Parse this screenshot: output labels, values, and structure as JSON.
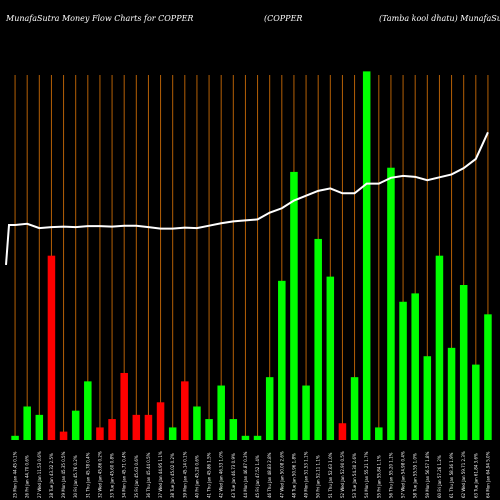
{
  "header": {
    "left": "MunafaSutra  Money Flow  Charts for COPPER",
    "middle": "(COPPER",
    "right": "(Tamba  kool dhatu) MunafaSutra.com"
  },
  "chart_data": {
    "type": "bar",
    "title": "MunafaSutra  Money Flow  Charts for COPPER",
    "categories": [
      "25 Mon Jan 44.45 0.1%",
      "26 Fri Jan 44.70 0.6%",
      "27 Wed Jan 11.53 0.6%",
      "28 Tue Jan 43.32 2.5%",
      "29 Mon Jan 45.35 0.5%",
      "30 Fri Jan 45.76 0.2%",
      "31 Thu Jan 45.78 0.4%",
      "32 Wed Jan 45.86 0.2%",
      "33 Tue Jan 45.60 0.8%",
      "34 Mon Jan 45.71 0.4%",
      "35 Fri Jan 45.63 0.6%",
      "36 Thu Jan 45.44 0.5%",
      "37 Wed Jan 44.95 1.1%",
      "38 Tue Jan 45.02 0.2%",
      "39 Mon Jan 45.14 0.1%",
      "40 Fri Jan 45.20 0.6%",
      "41 Thu Jan 45.86 1.5%",
      "42 Wed Jan 46.33 1.0%",
      "43 Tue Jan 46.73 0.9%",
      "44 Mon Jan 46.87 0.3%",
      "45 Fri Jan 47.52 1.4%",
      "46 Thu Jan 48.83 2.8%",
      "47 Wed Jan 50.08 2.6%",
      "48 Tue Jan 50.96 1.8%",
      "49 Mon Jan 51.53 1.1%",
      "50 Fri Jan 52.11 1.1%",
      "51 Thu Jan 52.63 1.0%",
      "52 Wed Jan 52.90 0.5%",
      "53 Tue Jan 54.30 2.6%",
      "54 Mon Jan 55.21 1.7%",
      "55 Fri Jan 55.84 1.1%",
      "56 Thu Jan 55.20 1.1%",
      "57 Wed Jan 54.98 0.4%",
      "58 Tue Jan 55.55 1.0%",
      "59 Mon Jan 56.57 1.8%",
      "60 Fri Jan 57.26 1.2%",
      "61 Thu Jan 58.36 1.9%",
      "62 Wed Jan 59.71 2.3%",
      "63 Tue Jan 61.84 3.6%",
      "64 Mon Jan 64.94 5.0%"
    ],
    "series": [
      {
        "values": [
          1,
          8,
          6,
          44,
          2,
          7,
          14,
          3,
          5,
          16,
          6,
          6,
          9,
          3,
          14,
          8,
          5,
          13,
          5,
          1,
          1,
          15,
          38,
          64,
          13,
          48,
          39,
          4,
          15,
          88,
          3,
          65,
          33,
          35,
          20,
          44,
          22,
          37,
          18,
          30
        ],
        "colors": [
          "#00ff00",
          "#00ff00",
          "#00ff00",
          "#ff0000",
          "#ff0000",
          "#00ff00",
          "#00ff00",
          "#ff0000",
          "#ff0000",
          "#ff0000",
          "#ff0000",
          "#ff0000",
          "#ff0000",
          "#00ff00",
          "#ff0000",
          "#00ff00",
          "#00ff00",
          "#00ff00",
          "#00ff00",
          "#00ff00",
          "#00ff00",
          "#00ff00",
          "#00ff00",
          "#00ff00",
          "#00ff00",
          "#00ff00",
          "#00ff00",
          "#ff0000",
          "#00ff00",
          "#00ff00",
          "#00ff00",
          "#00ff00",
          "#00ff00",
          "#00ff00",
          "#00ff00",
          "#00ff00",
          "#00ff00",
          "#00ff00",
          "#00ff00",
          "#00ff00"
        ]
      },
      {
        "type": "line",
        "color": "#ffffff",
        "values": [
          44.45,
          44.7,
          43.8,
          44.0,
          44.1,
          44.0,
          44.2,
          44.2,
          44.1,
          44.3,
          44.3,
          44.0,
          43.7,
          43.7,
          43.9,
          43.8,
          44.3,
          44.8,
          45.2,
          45.4,
          45.6,
          47.0,
          47.9,
          49.5,
          50.5,
          51.5,
          52.0,
          51.0,
          51.0,
          53.0,
          53.0,
          54.2,
          54.6,
          54.4,
          53.7,
          54.3,
          54.9,
          56.2,
          58.1,
          63.6
        ]
      }
    ],
    "ylim": [
      0,
      90
    ],
    "line_ylim": [
      0,
      80
    ],
    "grid": true,
    "grid_color": "#b45f06",
    "background": "#000000"
  }
}
